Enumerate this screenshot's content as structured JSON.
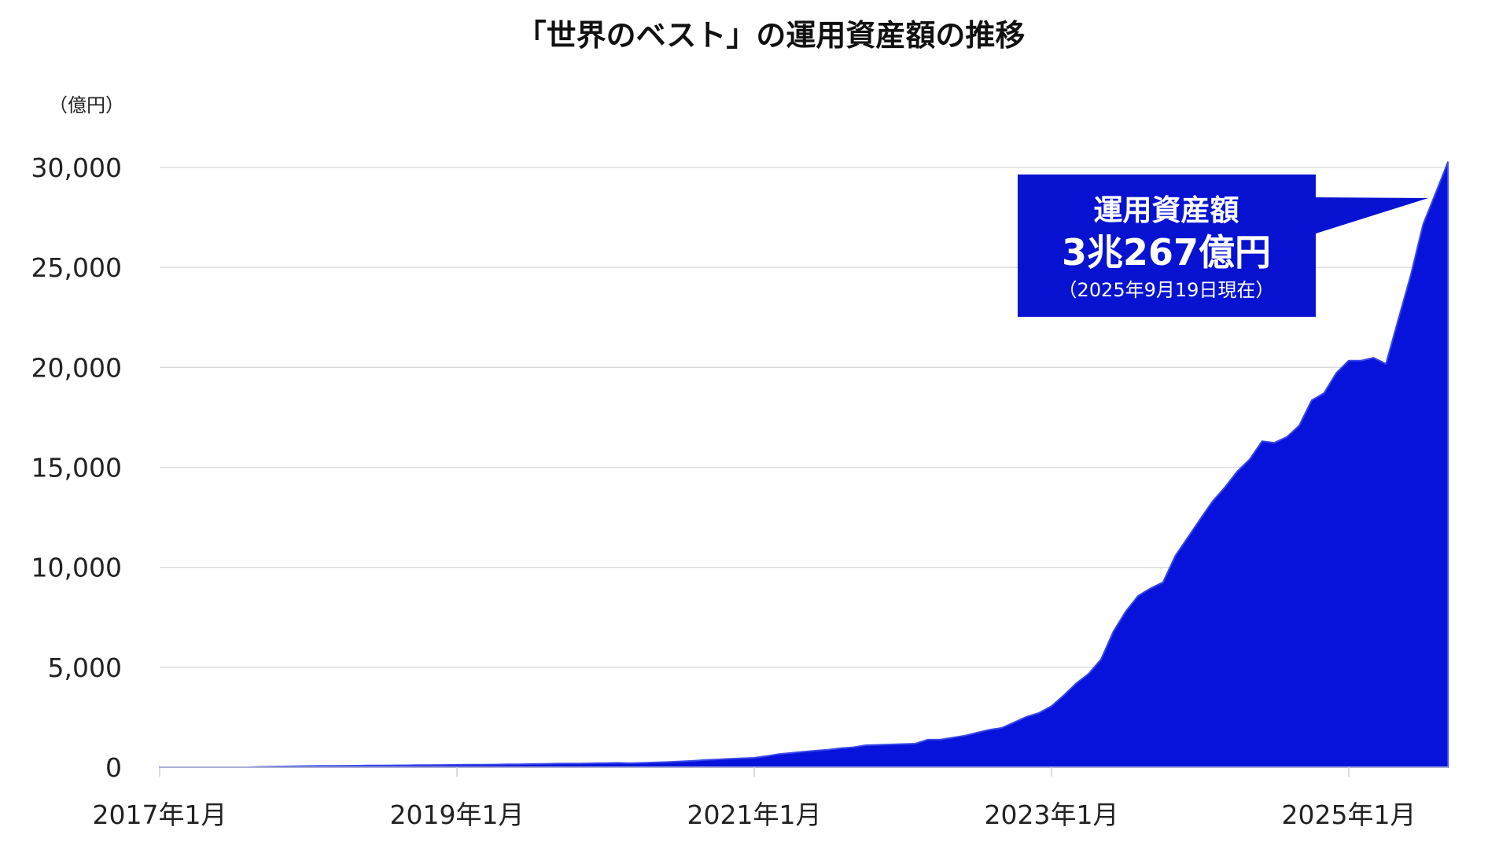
{
  "chart_data": {
    "type": "area",
    "title": "「世界のベスト」の運用資産額の推移",
    "ylabel": "（億円）",
    "xlabel": "",
    "ylim": [
      0,
      30000
    ],
    "yticks": [
      0,
      5000,
      10000,
      15000,
      20000,
      25000,
      30000
    ],
    "ytick_labels": [
      "0",
      "5,000",
      "10,000",
      "15,000",
      "20,000",
      "25,000",
      "30,000"
    ],
    "xtick_labels": [
      "2017年1月",
      "2019年1月",
      "2021年1月",
      "2023年1月",
      "2025年1月"
    ],
    "x_start": "2017-01",
    "x_end": "2025-09",
    "x_frequency": "monthly",
    "grid": true,
    "fill_color": "#0713DA",
    "values": [
      0,
      0,
      0,
      0,
      0,
      0,
      0,
      0,
      20,
      30,
      40,
      50,
      60,
      65,
      70,
      75,
      80,
      85,
      90,
      95,
      100,
      105,
      110,
      115,
      120,
      125,
      130,
      135,
      145,
      150,
      160,
      170,
      180,
      185,
      190,
      200,
      210,
      220,
      200,
      220,
      240,
      260,
      290,
      320,
      360,
      390,
      420,
      450,
      470,
      560,
      660,
      720,
      780,
      830,
      880,
      950,
      1000,
      1100,
      1120,
      1140,
      1160,
      1180,
      1380,
      1380,
      1480,
      1580,
      1730,
      1880,
      1970,
      2250,
      2530,
      2720,
      3060,
      3600,
      4200,
      4680,
      5400,
      6800,
      7800,
      8580,
      8950,
      9250,
      10580,
      11490,
      12400,
      13300,
      14000,
      14800,
      15400,
      16310,
      16230,
      16520,
      17090,
      18350,
      18710,
      19730,
      20340,
      20340,
      20480,
      20180,
      22400,
      24610,
      27150,
      28700,
      30267
    ],
    "annotation": {
      "line1": "運用資産額",
      "line2": "3兆267億円",
      "line3": "（2025年9月19日現在）",
      "box_color": "#0713D0"
    }
  }
}
